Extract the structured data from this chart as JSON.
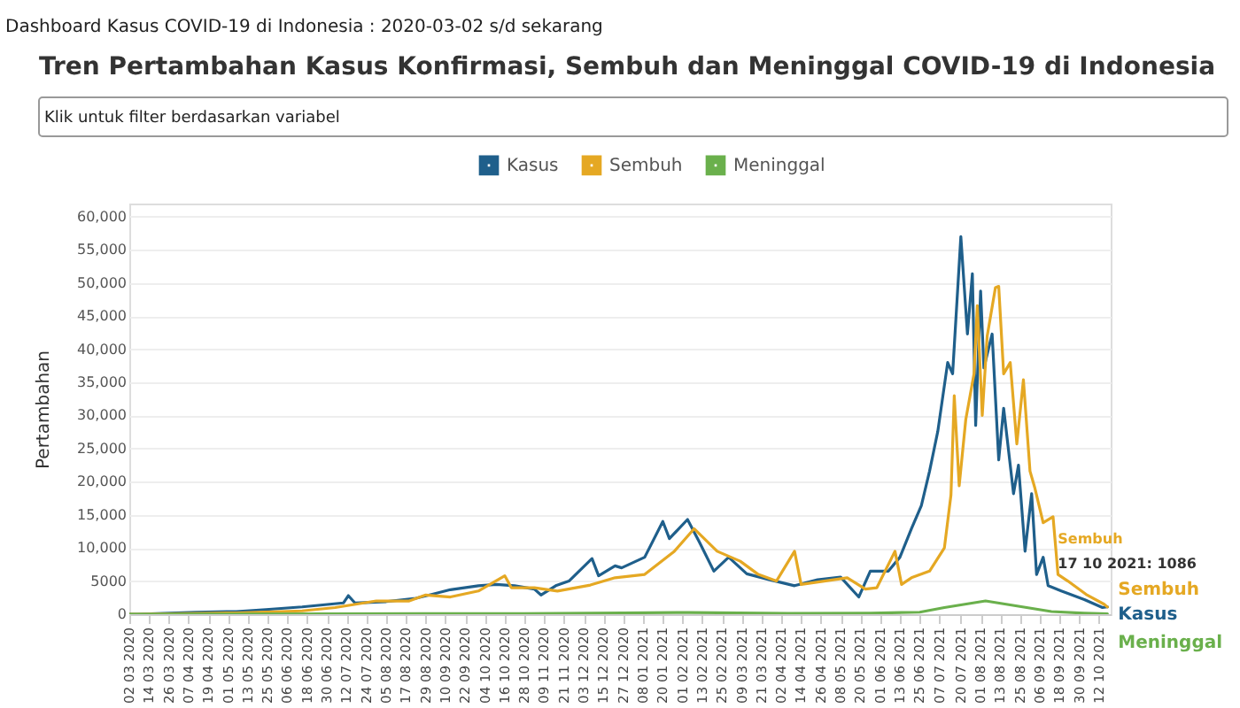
{
  "chart_data": {
    "type": "line",
    "title": "Tren Pertambahan Kasus Konfirmasi, Sembuh dan Meninggal COVID-19 di Indonesia",
    "ylabel": "Pertambahan",
    "annotations": [
      "Dashboard Kasus COVID-19 di Indonesia : 2020-03-02 s/d sekarang",
      "Klik untuk filter berdasarkan variabel",
      {
        "text": "Sembuh\n17 10 2021: 1086",
        "x": "2021-10-17",
        "y": 1086
      }
    ],
    "legend": "top",
    "grid": "y",
    "line_style": "solid",
    "marker": "none",
    "xlim": [
      "2020-03-02",
      "2021-10-19"
    ],
    "ylim": [
      0,
      62000
    ],
    "yticks": [
      {
        "value": 0,
        "label": "0"
      },
      {
        "value": 5000,
        "label": "5000"
      },
      {
        "value": 10000,
        "label": "10,000"
      },
      {
        "value": 15000,
        "label": "15,000"
      },
      {
        "value": 20000,
        "label": "20,000"
      },
      {
        "value": 25000,
        "label": "25,000"
      },
      {
        "value": 30000,
        "label": "30,000"
      },
      {
        "value": 35000,
        "label": "35,000"
      },
      {
        "value": 40000,
        "label": "40,000"
      },
      {
        "value": 45000,
        "label": "45,000"
      },
      {
        "value": 50000,
        "label": "50,000"
      },
      {
        "value": 55000,
        "label": "55,000"
      },
      {
        "value": 60000,
        "label": "60,000"
      }
    ],
    "xticks": [
      {
        "value": "2020-03-02",
        "label": "02 03 2020"
      },
      {
        "value": "2020-03-14",
        "label": "14 03 2020"
      },
      {
        "value": "2020-03-26",
        "label": "26 03 2020"
      },
      {
        "value": "2020-04-07",
        "label": "07 04 2020"
      },
      {
        "value": "2020-04-19",
        "label": "19 04 2020"
      },
      {
        "value": "2020-05-01",
        "label": "01 05 2020"
      },
      {
        "value": "2020-05-13",
        "label": "13 05 2020"
      },
      {
        "value": "2020-05-25",
        "label": "25 05 2020"
      },
      {
        "value": "2020-06-06",
        "label": "06 06 2020"
      },
      {
        "value": "2020-06-18",
        "label": "18 06 2020"
      },
      {
        "value": "2020-06-30",
        "label": "30 06 2020"
      },
      {
        "value": "2020-07-12",
        "label": "12 07 2020"
      },
      {
        "value": "2020-07-24",
        "label": "24 07 2020"
      },
      {
        "value": "2020-08-05",
        "label": "05 08 2020"
      },
      {
        "value": "2020-08-17",
        "label": "17 08 2020"
      },
      {
        "value": "2020-08-29",
        "label": "29 08 2020"
      },
      {
        "value": "2020-09-10",
        "label": "10 09 2020"
      },
      {
        "value": "2020-09-22",
        "label": "22 09 2020"
      },
      {
        "value": "2020-10-04",
        "label": "04 10 2020"
      },
      {
        "value": "2020-10-16",
        "label": "16 10 2020"
      },
      {
        "value": "2020-10-28",
        "label": "28 10 2020"
      },
      {
        "value": "2020-11-09",
        "label": "09 11 2020"
      },
      {
        "value": "2020-11-21",
        "label": "21 11 2020"
      },
      {
        "value": "2020-12-03",
        "label": "03 12 2020"
      },
      {
        "value": "2020-12-15",
        "label": "15 12 2020"
      },
      {
        "value": "2020-12-27",
        "label": "27 12 2020"
      },
      {
        "value": "2021-01-08",
        "label": "08 01 2021"
      },
      {
        "value": "2021-01-20",
        "label": "20 01 2021"
      },
      {
        "value": "2021-02-01",
        "label": "01 02 2021"
      },
      {
        "value": "2021-02-13",
        "label": "13 02 2021"
      },
      {
        "value": "2021-02-25",
        "label": "25 02 2021"
      },
      {
        "value": "2021-03-09",
        "label": "09 03 2021"
      },
      {
        "value": "2021-03-21",
        "label": "21 03 2021"
      },
      {
        "value": "2021-04-02",
        "label": "02 04 2021"
      },
      {
        "value": "2021-04-14",
        "label": "14 04 2021"
      },
      {
        "value": "2021-04-26",
        "label": "26 04 2021"
      },
      {
        "value": "2021-05-08",
        "label": "08 05 2021"
      },
      {
        "value": "2021-05-20",
        "label": "20 05 2021"
      },
      {
        "value": "2021-06-01",
        "label": "01 06 2021"
      },
      {
        "value": "2021-06-13",
        "label": "13 06 2021"
      },
      {
        "value": "2021-06-25",
        "label": "25 06 2021"
      },
      {
        "value": "2021-07-07",
        "label": "07 07 2021"
      },
      {
        "value": "2021-07-20",
        "label": "20 07 2021"
      },
      {
        "value": "2021-08-01",
        "label": "01 08 2021"
      },
      {
        "value": "2021-08-13",
        "label": "13 08 2021"
      },
      {
        "value": "2021-08-25",
        "label": "25 08 2021"
      },
      {
        "value": "2021-09-06",
        "label": "06 09 2021"
      },
      {
        "value": "2021-09-18",
        "label": "18 09 2021"
      },
      {
        "value": "2021-09-30",
        "label": "30 09 2021"
      },
      {
        "value": "2021-10-12",
        "label": "12 10 2021"
      }
    ],
    "series": [
      {
        "name": "Kasus",
        "color": "#1f5f8b",
        "x": [
          "2020-03-02",
          "2020-03-07",
          "2020-04-11",
          "2020-05-06",
          "2020-05-24",
          "2020-06-15",
          "2020-07-10",
          "2020-07-13",
          "2020-07-17",
          "2020-08-05",
          "2020-08-23",
          "2020-09-02",
          "2020-09-13",
          "2020-09-30",
          "2020-10-11",
          "2020-10-22",
          "2020-11-03",
          "2020-11-07",
          "2020-11-16",
          "2020-11-24",
          "2020-12-08",
          "2020-12-12",
          "2020-12-22",
          "2020-12-26",
          "2021-01-09",
          "2021-01-20",
          "2021-01-24",
          "2021-02-04",
          "2021-02-11",
          "2021-02-20",
          "2021-03-01",
          "2021-03-12",
          "2021-03-26",
          "2021-04-10",
          "2021-04-24",
          "2021-05-08",
          "2021-05-19",
          "2021-05-26",
          "2021-06-06",
          "2021-06-13",
          "2021-06-20",
          "2021-06-26",
          "2021-07-01",
          "2021-07-06",
          "2021-07-12",
          "2021-07-15",
          "2021-07-20",
          "2021-07-24",
          "2021-07-27",
          "2021-07-29",
          "2021-08-01",
          "2021-08-03",
          "2021-08-08",
          "2021-08-12",
          "2021-08-15",
          "2021-08-21",
          "2021-08-24",
          "2021-08-28",
          "2021-09-01",
          "2021-09-04",
          "2021-09-08",
          "2021-09-11",
          "2021-09-19",
          "2021-10-03",
          "2021-10-14",
          "2021-10-17"
        ],
        "values": [
          0,
          0,
          300,
          400,
          700,
          1100,
          1700,
          2800,
          1700,
          1900,
          2400,
          3000,
          3700,
          4300,
          4500,
          4300,
          3800,
          2900,
          4300,
          5000,
          8400,
          5800,
          7300,
          7000,
          8600,
          14000,
          11400,
          14300,
          11000,
          6500,
          8600,
          6100,
          5200,
          4300,
          5200,
          5600,
          2600,
          6500,
          6500,
          8600,
          12900,
          16400,
          21600,
          27600,
          38000,
          36300,
          57000,
          42300,
          51400,
          28500,
          48800,
          37200,
          42300,
          23300,
          31100,
          18200,
          22500,
          9500,
          18200,
          6000,
          8600,
          4300,
          3500,
          2200,
          1000,
          1100
        ]
      },
      {
        "name": "Sembuh",
        "color": "#e5a823",
        "x": [
          "2020-03-02",
          "2020-03-07",
          "2020-05-06",
          "2020-06-15",
          "2020-07-05",
          "2020-07-30",
          "2020-08-19",
          "2020-08-29",
          "2020-09-13",
          "2020-09-30",
          "2020-10-16",
          "2020-10-20",
          "2020-11-03",
          "2020-11-17",
          "2020-12-07",
          "2020-12-22",
          "2021-01-09",
          "2021-01-27",
          "2021-02-08",
          "2021-02-22",
          "2021-03-08",
          "2021-03-19",
          "2021-03-30",
          "2021-04-10",
          "2021-04-14",
          "2021-04-28",
          "2021-05-12",
          "2021-05-23",
          "2021-05-30",
          "2021-06-10",
          "2021-06-14",
          "2021-06-20",
          "2021-07-01",
          "2021-07-10",
          "2021-07-14",
          "2021-07-16",
          "2021-07-19",
          "2021-07-23",
          "2021-07-28",
          "2021-07-30",
          "2021-08-02",
          "2021-08-05",
          "2021-08-10",
          "2021-08-12",
          "2021-08-15",
          "2021-08-19",
          "2021-08-23",
          "2021-08-27",
          "2021-08-31",
          "2021-09-03",
          "2021-09-08",
          "2021-09-14",
          "2021-09-17",
          "2021-09-23",
          "2021-10-04",
          "2021-10-15",
          "2021-10-17"
        ],
        "values": [
          0,
          0,
          200,
          500,
          1000,
          2000,
          2000,
          2900,
          2600,
          3500,
          5800,
          4000,
          4000,
          3500,
          4400,
          5500,
          6000,
          9500,
          12900,
          9500,
          8000,
          6000,
          5000,
          9500,
          4500,
          5000,
          5500,
          3800,
          4000,
          9500,
          4500,
          5500,
          6500,
          10000,
          18000,
          33000,
          19400,
          29400,
          36300,
          46600,
          30000,
          42000,
          49300,
          49500,
          36300,
          38000,
          25700,
          35400,
          21600,
          19000,
          13800,
          14700,
          6000,
          5000,
          3000,
          1500,
          1086
        ]
      },
      {
        "name": "Meninggal",
        "color": "#6ab04c",
        "x": [
          "2020-03-02",
          "2020-05-01",
          "2020-07-01",
          "2020-08-29",
          "2020-10-28",
          "2020-12-27",
          "2021-02-05",
          "2021-04-06",
          "2021-05-26",
          "2021-06-25",
          "2021-07-10",
          "2021-07-20",
          "2021-07-30",
          "2021-08-04",
          "2021-08-14",
          "2021-08-29",
          "2021-09-13",
          "2021-10-03",
          "2021-10-17"
        ],
        "values": [
          0,
          20,
          60,
          100,
          100,
          200,
          250,
          130,
          150,
          300,
          1000,
          1400,
          1800,
          2000,
          1600,
          1000,
          400,
          150,
          50
        ]
      }
    ]
  }
}
